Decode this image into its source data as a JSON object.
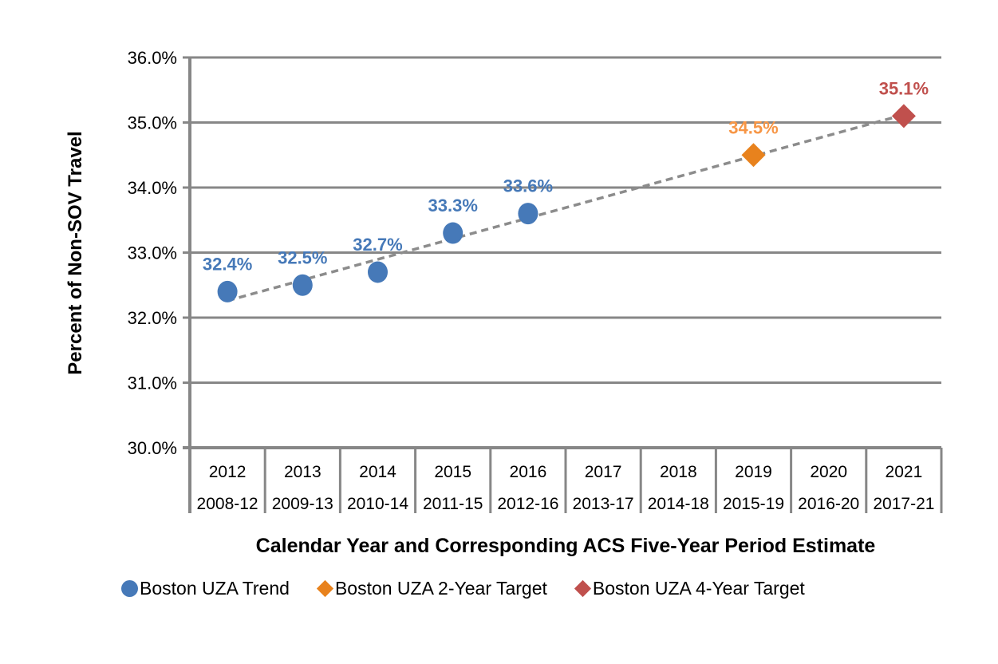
{
  "chart_data": {
    "type": "scatter",
    "title": "",
    "xlabel": "Calendar Year and Corresponding ACS Five-Year Period Estimate",
    "ylabel": "Percent of Non-SOV Travel",
    "ylim": [
      30.0,
      36.0
    ],
    "y_tick_step": 1.0,
    "y_ticks": [
      "36.0%",
      "35.0%",
      "34.0%",
      "33.0%",
      "32.0%",
      "31.0%",
      "30.0%"
    ],
    "categories_year": [
      "2012",
      "2013",
      "2014",
      "2015",
      "2016",
      "2017",
      "2018",
      "2019",
      "2020",
      "2021"
    ],
    "categories_acs": [
      "2008-12",
      "2009-13",
      "2010-14",
      "2011-15",
      "2012-16",
      "2013-17",
      "2014-18",
      "2015-19",
      "2016-20",
      "2017-21"
    ],
    "grid": {
      "on": true,
      "color": "#878787"
    },
    "axis_color": "#878787",
    "legend_position": "bottom",
    "series": [
      {
        "name": "Boston UZA Trend",
        "marker": "circle",
        "color": "#4679B8",
        "label_color": "#4679B8",
        "points": [
          {
            "x": 0,
            "y": 32.4,
            "label": "32.4%"
          },
          {
            "x": 1,
            "y": 32.5,
            "label": "32.5%"
          },
          {
            "x": 2,
            "y": 32.7,
            "label": "32.7%"
          },
          {
            "x": 3,
            "y": 33.3,
            "label": "33.3%"
          },
          {
            "x": 4,
            "y": 33.6,
            "label": "33.6%"
          }
        ]
      },
      {
        "name": "Boston UZA 2-Year Target",
        "marker": "diamond",
        "color": "#E8821D",
        "label_color": "#F79646",
        "points": [
          {
            "x": 7,
            "y": 34.5,
            "label": "34.5%"
          }
        ]
      },
      {
        "name": "Boston UZA 4-Year Target",
        "marker": "diamond",
        "color": "#C0504D",
        "label_color": "#C0504D",
        "points": [
          {
            "x": 9,
            "y": 35.1,
            "label": "35.1%"
          }
        ]
      }
    ],
    "trendline": {
      "style": "dashed",
      "color": "#8C8C8C",
      "x_start": 0,
      "y_start": 32.26,
      "x_end": 9,
      "y_end": 35.12
    },
    "legend": [
      {
        "label": "Boston UZA Trend",
        "marker": "circle",
        "color": "#4679B8"
      },
      {
        "label": "Boston UZA 2-Year Target",
        "marker": "diamond",
        "color": "#E8821D"
      },
      {
        "label": "Boston UZA 4-Year Target",
        "marker": "diamond",
        "color": "#C0504D"
      }
    ]
  }
}
